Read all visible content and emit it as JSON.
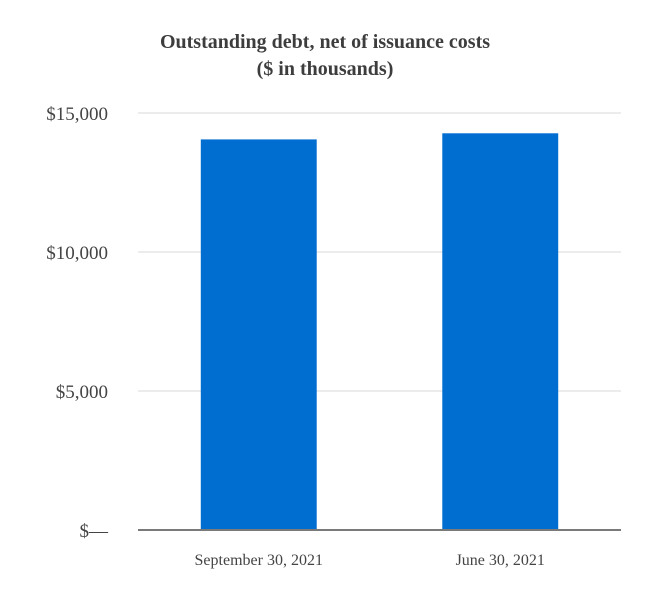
{
  "chart_data": {
    "type": "bar",
    "title": "Outstanding debt, net of issuance costs",
    "subtitle": "($ in thousands)",
    "xlabel": "",
    "ylabel": "",
    "categories": [
      "September 30, 2021",
      "June 30, 2021"
    ],
    "values": [
      14050,
      14270
    ],
    "ylim": [
      0,
      15000
    ],
    "yticks": [
      0,
      5000,
      10000,
      15000
    ],
    "ytick_labels": [
      "$—",
      "$5,000",
      "$10,000",
      "$15,000"
    ],
    "grid": true,
    "legend": "none",
    "bar_color": "#006dd0",
    "grid_color": "#e6e6e6",
    "axis_color": "#7a7a7a"
  }
}
